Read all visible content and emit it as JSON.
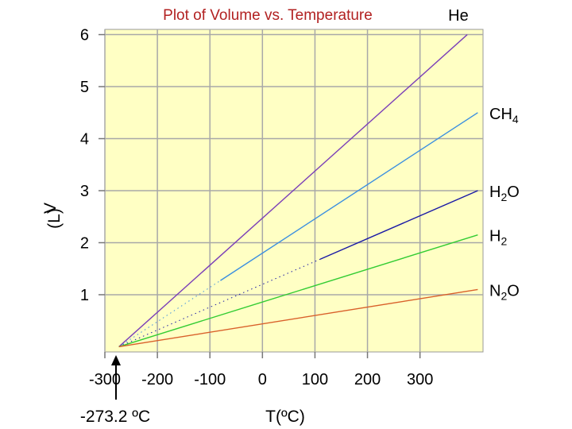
{
  "chart_data": {
    "type": "line",
    "title": "Plot of Volume vs. Temperature",
    "xlabel": "T(ºC)",
    "ylabel_main": "V",
    "ylabel_unit": "(L)",
    "origin_label": "-273.2 ºC",
    "xlim": [
      -300,
      420
    ],
    "ylim": [
      -0.1,
      6.1
    ],
    "x_ticks": [
      -300,
      -200,
      -100,
      0,
      100,
      200,
      300
    ],
    "x_tick_labels": [
      "-300",
      "-200",
      "-100",
      "0",
      "100",
      "200",
      "300"
    ],
    "y_ticks": [
      1,
      2,
      3,
      4,
      5,
      6
    ],
    "y_tick_labels": [
      "1",
      "2",
      "3",
      "4",
      "5",
      "6"
    ],
    "grid": true,
    "origin_x": -273.2,
    "series": [
      {
        "name": "He",
        "base": "He",
        "sub": "",
        "tail": "",
        "color": "#7b3fb8",
        "solid_from": -273.2,
        "end": [
          390,
          6.0
        ]
      },
      {
        "name": "CH4",
        "base": "CH",
        "sub": "4",
        "tail": "",
        "color": "#3b8fe0",
        "solid_from": -80,
        "end": [
          410,
          4.5
        ]
      },
      {
        "name": "H2O",
        "base": "H",
        "sub": "2",
        "tail": "O",
        "color": "#1a1aa6",
        "solid_from": 110,
        "end": [
          410,
          3.0
        ]
      },
      {
        "name": "H2",
        "base": "H",
        "sub": "2",
        "tail": "",
        "color": "#33cc33",
        "solid_from": -273.2,
        "end": [
          410,
          2.15
        ]
      },
      {
        "name": "N2O",
        "base": "N",
        "sub": "2",
        "tail": "O",
        "color": "#d9602a",
        "solid_from": -273.2,
        "end": [
          410,
          1.1
        ]
      }
    ]
  }
}
